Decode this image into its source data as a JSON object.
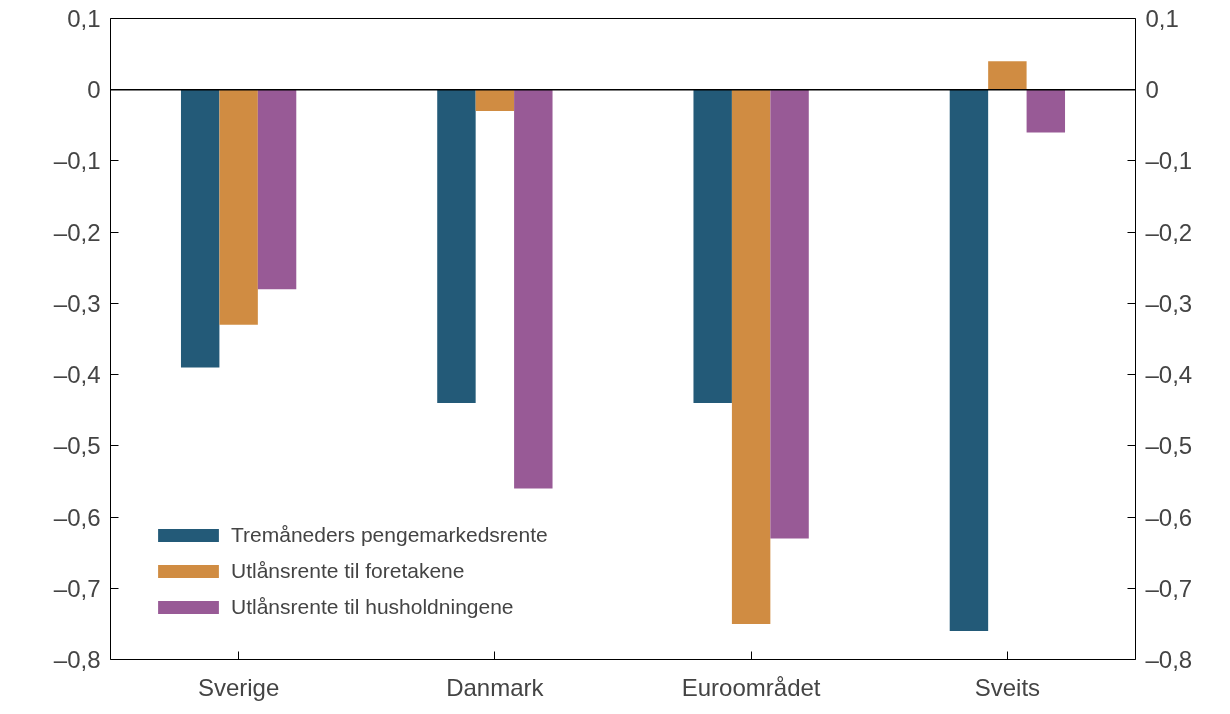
{
  "chart_data": {
    "type": "bar",
    "categories": [
      "Sverige",
      "Danmark",
      "Euroområdet",
      "Sveits"
    ],
    "series": [
      {
        "name": "Tremåneders pengemarkedsrente",
        "color": "#235a78",
        "values": [
          -0.39,
          -0.44,
          -0.44,
          -0.76
        ]
      },
      {
        "name": "Utlånsrente til foretakene",
        "color": "#d08c42",
        "values": [
          -0.33,
          -0.03,
          -0.75,
          0.04
        ]
      },
      {
        "name": "Utlånsrente til husholdningene",
        "color": "#985a96",
        "values": [
          -0.28,
          -0.56,
          -0.63,
          -0.06
        ]
      }
    ],
    "ylim": [
      -0.8,
      0.1
    ],
    "yticks": [
      {
        "value": 0.1,
        "label": "0,1"
      },
      {
        "value": 0,
        "label": "0"
      },
      {
        "value": -0.1,
        "label": "–0,1"
      },
      {
        "value": -0.2,
        "label": "–0,2"
      },
      {
        "value": -0.3,
        "label": "–0,3"
      },
      {
        "value": -0.4,
        "label": "–0,4"
      },
      {
        "value": -0.5,
        "label": "–0,5"
      },
      {
        "value": -0.6,
        "label": "–0,6"
      },
      {
        "value": -0.7,
        "label": "–0,7"
      },
      {
        "value": -0.8,
        "label": "–0,8"
      }
    ],
    "y2lim": [
      -0.8,
      0.1
    ],
    "y2ticks": [
      {
        "value": 0.1,
        "label": "0,1"
      },
      {
        "value": 0,
        "label": "0"
      },
      {
        "value": -0.1,
        "label": "–0,1"
      },
      {
        "value": -0.2,
        "label": "–0,2"
      },
      {
        "value": -0.3,
        "label": "–0,3"
      },
      {
        "value": -0.4,
        "label": "–0,4"
      },
      {
        "value": -0.5,
        "label": "–0,5"
      },
      {
        "value": -0.6,
        "label": "–0,6"
      },
      {
        "value": -0.7,
        "label": "–0,7"
      },
      {
        "value": -0.8,
        "label": "–0,8"
      }
    ],
    "ref_lines": [
      {
        "axis": "y",
        "value": 0,
        "color": "#000000"
      }
    ],
    "grid": false,
    "legend": "bottom left"
  }
}
